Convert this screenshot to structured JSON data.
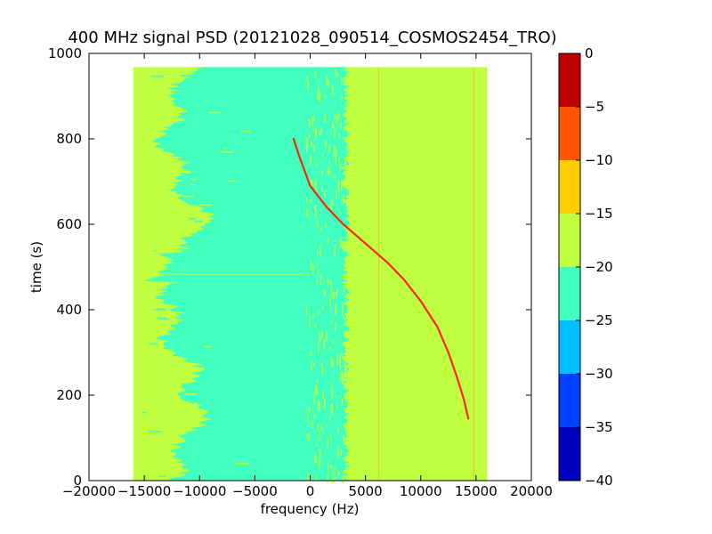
{
  "chart_data": {
    "type": "heatmap",
    "title": "400 MHz signal PSD (20121028_090514_COSMOS2454_TRO)",
    "xlabel": "frequency (Hz)",
    "ylabel": "time (s)",
    "xlim": [
      -20000,
      20000
    ],
    "ylim": [
      0,
      1000
    ],
    "xticks": [
      -20000,
      -15000,
      -10000,
      -5000,
      0,
      5000,
      10000,
      15000,
      20000
    ],
    "xtick_labels": [
      "−20000",
      "−15000",
      "−10000",
      "−5000",
      "0",
      "5000",
      "10000",
      "15000",
      "20000"
    ],
    "yticks": [
      0,
      200,
      400,
      600,
      800,
      1000
    ],
    "ytick_labels": [
      "0",
      "200",
      "400",
      "600",
      "800",
      "1000"
    ],
    "data_extent": {
      "x": [
        -16000,
        16000
      ],
      "y": [
        0,
        968
      ]
    },
    "colorbar": {
      "levels": [
        -40,
        -35,
        -30,
        -25,
        -20,
        -15,
        -10,
        -5,
        0
      ],
      "tick_labels": [
        "−40",
        "−35",
        "−30",
        "−25",
        "−20",
        "−15",
        "−10",
        "−5",
        "0"
      ],
      "colors": [
        "#0000bf",
        "#0040ff",
        "#00bfff",
        "#40ffbf",
        "#bfff40",
        "#ffcc00",
        "#ff5500",
        "#bf0000"
      ]
    },
    "background_levels": {
      "outer_band": "#bfff40",
      "noise_floor": "#40ffbf",
      "left_edge_freq_hz": [
        -15000,
        -5000
      ],
      "right_edge_freq_hz": [
        2500,
        4000
      ]
    },
    "signal_trace": {
      "color": "#ff2200",
      "points": [
        {
          "x": -1500,
          "y": 800
        },
        {
          "x": -1000,
          "y": 760
        },
        {
          "x": 0,
          "y": 690
        },
        {
          "x": 1500,
          "y": 640
        },
        {
          "x": 3000,
          "y": 600
        },
        {
          "x": 5000,
          "y": 555
        },
        {
          "x": 7000,
          "y": 510
        },
        {
          "x": 8500,
          "y": 470
        },
        {
          "x": 10000,
          "y": 420
        },
        {
          "x": 11500,
          "y": 360
        },
        {
          "x": 12500,
          "y": 300
        },
        {
          "x": 13300,
          "y": 240
        },
        {
          "x": 13900,
          "y": 190
        },
        {
          "x": 14300,
          "y": 145
        }
      ]
    },
    "vertical_lines_hz": [
      6200,
      14800
    ]
  }
}
